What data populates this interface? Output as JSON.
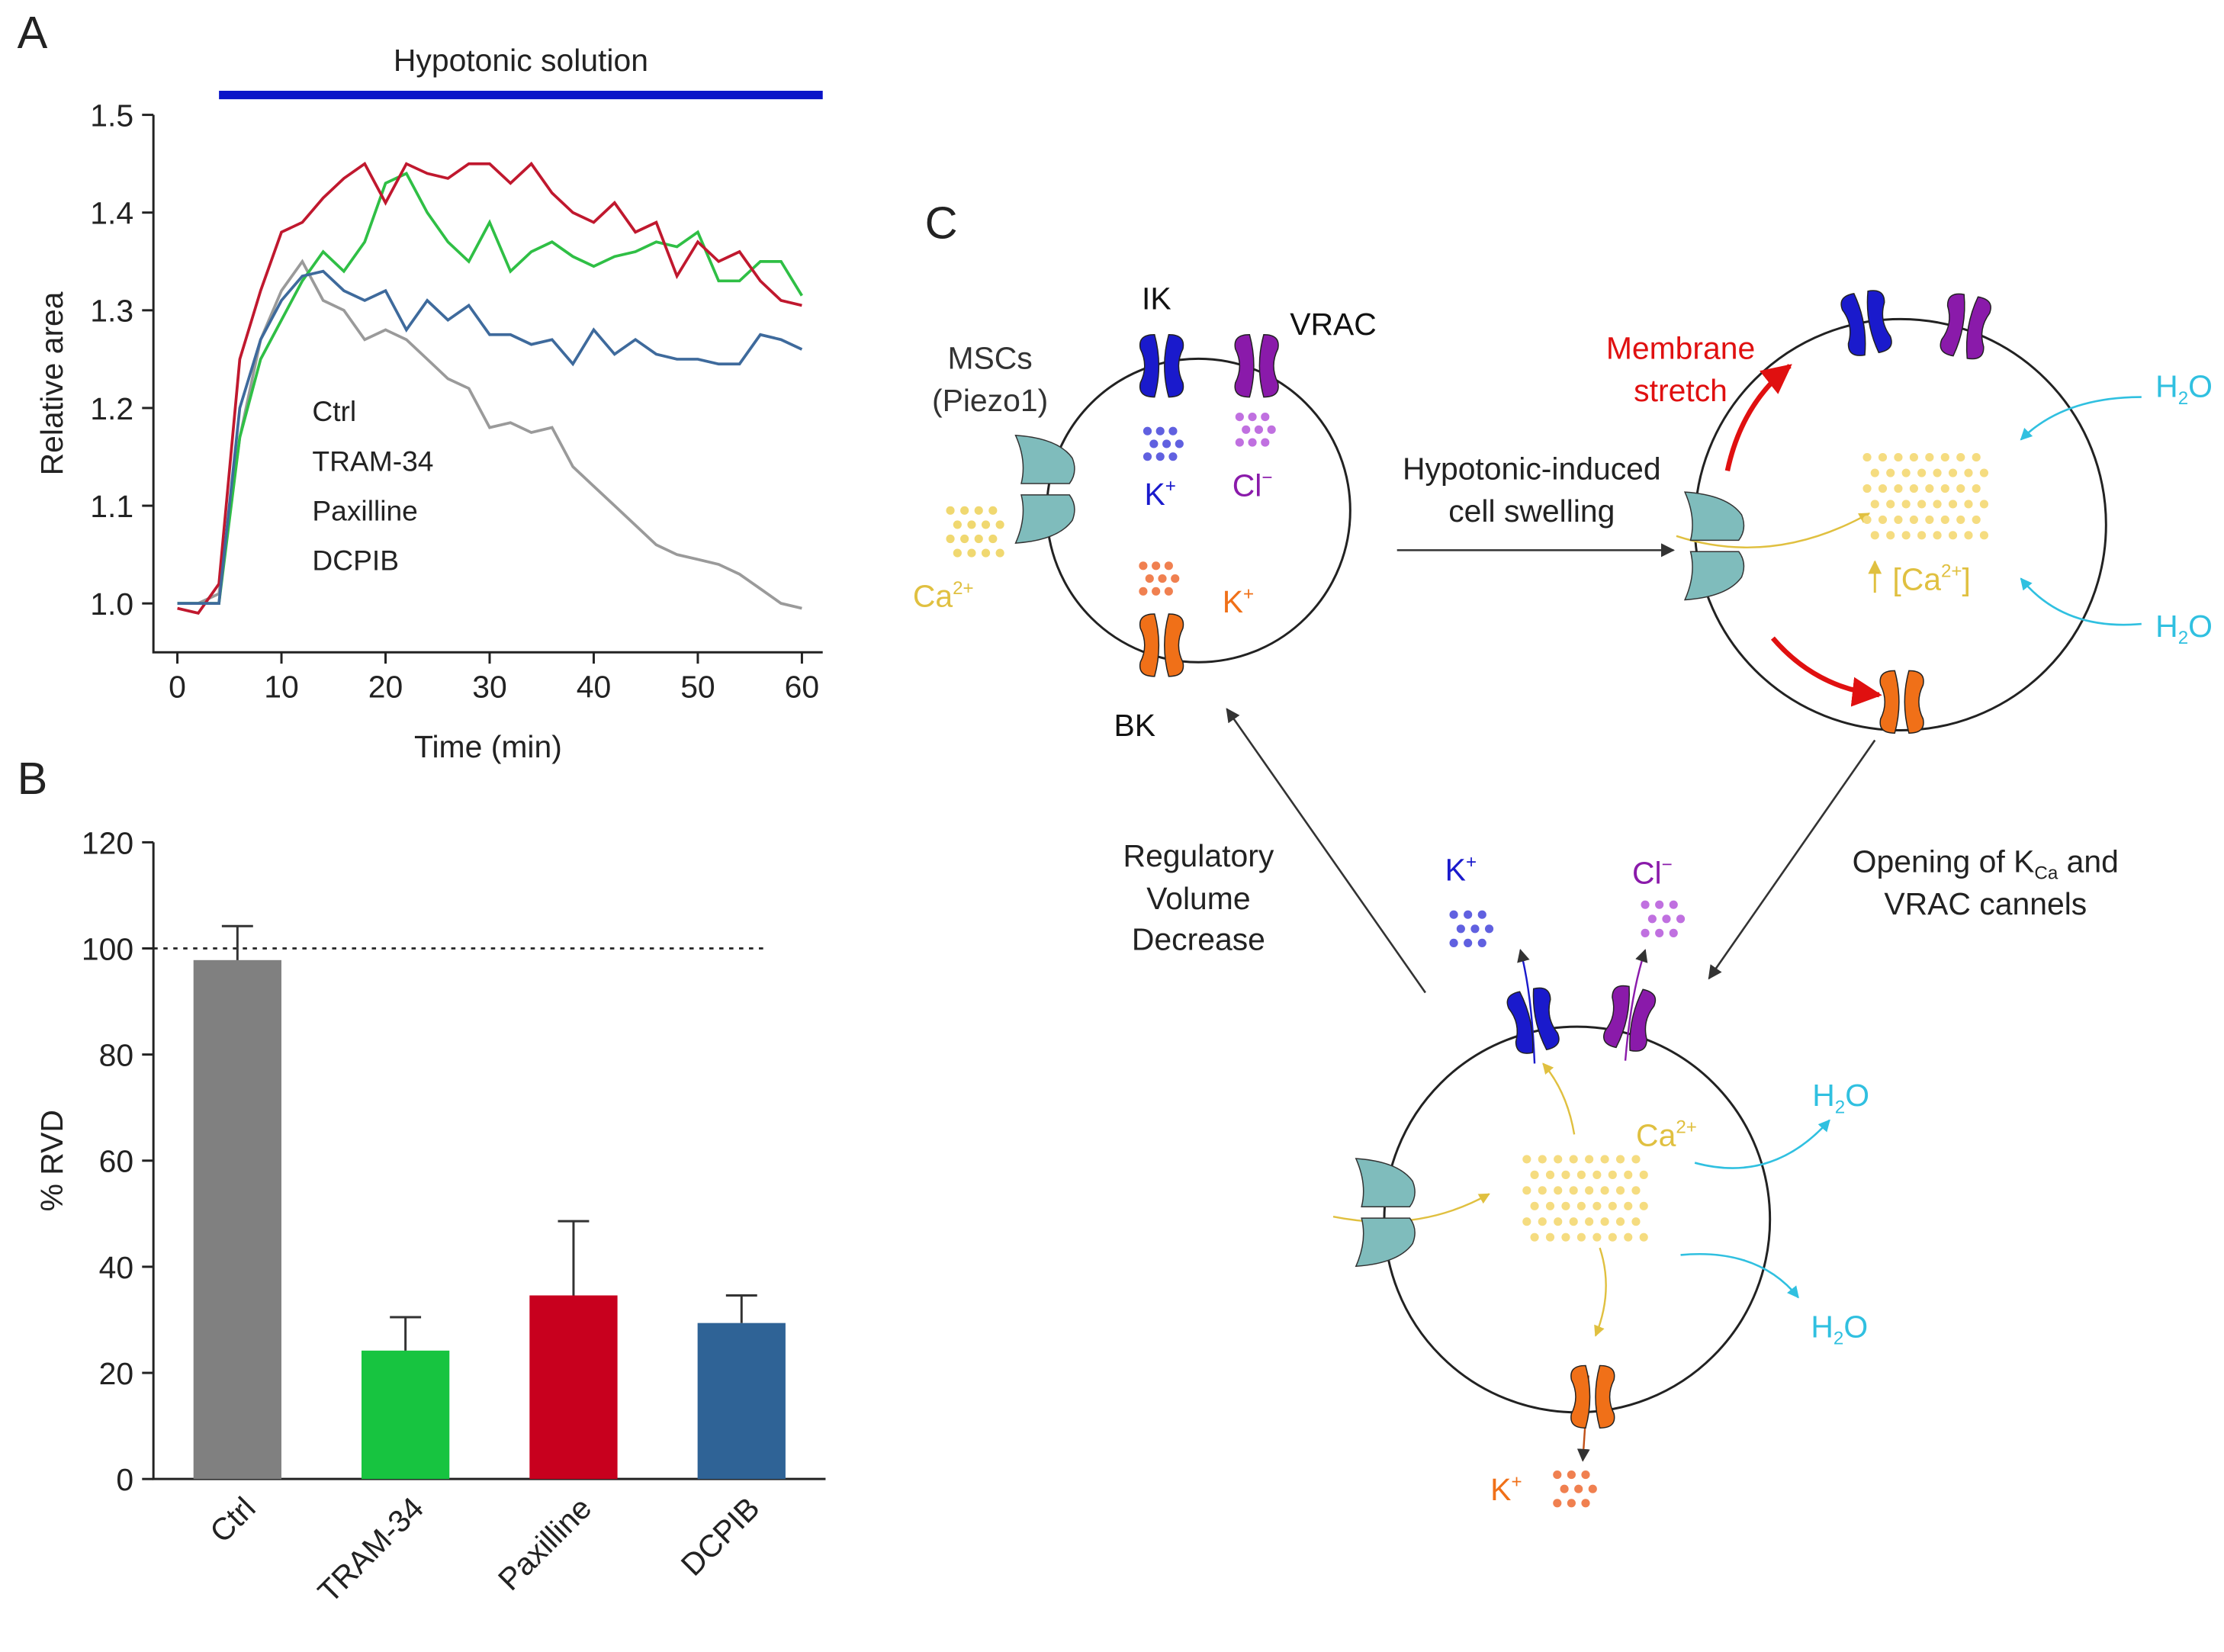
{
  "chart_data": [
    {
      "type": "line",
      "panel": "A",
      "xlabel": "Time (min)",
      "ylabel": "Relative area",
      "annotation": {
        "text": "Hypotonic solution",
        "x": [
          4,
          62
        ],
        "color": "#0a14c8"
      },
      "x": [
        0,
        2,
        4,
        6,
        8,
        10,
        12,
        14,
        16,
        18,
        20,
        22,
        24,
        26,
        28,
        30,
        32,
        34,
        36,
        38,
        40,
        42,
        44,
        46,
        48,
        50,
        52,
        54,
        56,
        58,
        60
      ],
      "series": [
        {
          "name": "Ctrl",
          "color": "#9a9a9a",
          "values": [
            1.0,
            1.0,
            1.01,
            1.17,
            1.27,
            1.32,
            1.35,
            1.31,
            1.3,
            1.27,
            1.28,
            1.27,
            1.25,
            1.23,
            1.22,
            1.18,
            1.185,
            1.175,
            1.18,
            1.14,
            1.12,
            1.1,
            1.08,
            1.06,
            1.05,
            1.045,
            1.04,
            1.03,
            1.015,
            1.0,
            0.995
          ]
        },
        {
          "name": "TRAM-34",
          "color": "#2fbf45",
          "values": [
            1.0,
            1.0,
            1.0,
            1.17,
            1.25,
            1.29,
            1.33,
            1.36,
            1.34,
            1.37,
            1.43,
            1.44,
            1.4,
            1.37,
            1.35,
            1.39,
            1.34,
            1.36,
            1.37,
            1.355,
            1.345,
            1.355,
            1.36,
            1.37,
            1.365,
            1.38,
            1.33,
            1.33,
            1.35,
            1.35,
            1.315
          ]
        },
        {
          "name": "Paxilline",
          "color": "#c0182e",
          "values": [
            0.995,
            0.99,
            1.02,
            1.25,
            1.32,
            1.38,
            1.39,
            1.415,
            1.435,
            1.45,
            1.41,
            1.45,
            1.44,
            1.435,
            1.45,
            1.45,
            1.43,
            1.45,
            1.42,
            1.4,
            1.39,
            1.41,
            1.38,
            1.39,
            1.335,
            1.37,
            1.35,
            1.36,
            1.33,
            1.31,
            1.305
          ]
        },
        {
          "name": "DCPIB",
          "color": "#3e6a9c",
          "values": [
            1.0,
            1.0,
            1.0,
            1.2,
            1.27,
            1.31,
            1.335,
            1.34,
            1.32,
            1.31,
            1.32,
            1.28,
            1.31,
            1.29,
            1.305,
            1.275,
            1.275,
            1.265,
            1.27,
            1.245,
            1.28,
            1.255,
            1.27,
            1.255,
            1.25,
            1.25,
            1.245,
            1.245,
            1.275,
            1.27,
            1.26
          ]
        }
      ],
      "xlim": [
        -2.3,
        62
      ],
      "xticks": [
        0,
        10,
        20,
        30,
        40,
        50,
        60
      ],
      "ylim": [
        0.95,
        1.5
      ],
      "yticks": [
        {
          "value": 1,
          "label": "1.0"
        },
        1.1,
        1.2,
        1.3,
        1.4,
        1.5
      ]
    },
    {
      "type": "bar",
      "panel": "B",
      "ylabel": "% RVD",
      "categories": [
        "Ctrl",
        "TRAM-34",
        "Paxilline",
        "DCPIB"
      ],
      "values": [
        97.8,
        24.2,
        34.6,
        29.4
      ],
      "errors": [
        6.4,
        6.3,
        14,
        5.2
      ],
      "colors": [
        "#808080",
        "#17c440",
        "#c8001e",
        "#2f6396"
      ],
      "reference_line": 100,
      "ylim": [
        0,
        120
      ],
      "yticks": [
        0,
        20,
        40,
        60,
        80,
        100,
        120
      ]
    }
  ],
  "diagram": {
    "panel": "C",
    "labels": [
      {
        "text": "IK",
        "color": "#111"
      },
      {
        "text": "VRAC",
        "color": "#111"
      },
      {
        "text": "MSCs",
        "color": "#333"
      },
      {
        "text": "(Piezo1)",
        "color": "#333"
      },
      {
        "text": "K",
        "sup": "+",
        "color": "#1a1acc"
      },
      {
        "text": "Cl",
        "sup": "−",
        "color": "#8a1aaa"
      },
      {
        "text": "Ca",
        "sup": "2+",
        "color": "#e0c040"
      },
      {
        "text": "K",
        "sup": "+",
        "color": "#f07018"
      },
      {
        "text": "BK",
        "color": "#111"
      },
      {
        "text": "Hypotonic-induced",
        "color": "#222"
      },
      {
        "text": "cell swelling",
        "color": "#222"
      },
      {
        "text": "Membrane",
        "color": "#e01010"
      },
      {
        "text": "stretch",
        "color": "#e01010"
      },
      {
        "text": "H",
        "sub": "2",
        "tail": "O",
        "color": "#30c0e0"
      },
      {
        "text": "H",
        "sub": "2",
        "tail": "O",
        "color": "#30c0e0"
      },
      {
        "text": "[Ca",
        "sup": "2+",
        "tail": "]",
        "color": "#e0c040"
      },
      {
        "text": "Opening of K",
        "sub": "Ca",
        "tail": " and",
        "color": "#222"
      },
      {
        "text": "VRAC cannels",
        "color": "#222"
      },
      {
        "text": "Regulatory",
        "color": "#222"
      },
      {
        "text": "Volume",
        "color": "#222"
      },
      {
        "text": "Decrease",
        "color": "#222"
      },
      {
        "text": "K",
        "sup": "+",
        "color": "#1a1acc"
      },
      {
        "text": "Cl",
        "sup": "−",
        "color": "#8a1aaa"
      },
      {
        "text": "Ca",
        "sup": "2+",
        "color": "#e0c040"
      },
      {
        "text": "H",
        "sub": "2",
        "tail": "O",
        "color": "#30c0e0"
      },
      {
        "text": "H",
        "sub": "2",
        "tail": "O",
        "color": "#30c0e0"
      },
      {
        "text": "K",
        "sup": "+",
        "color": "#f07018"
      }
    ]
  }
}
